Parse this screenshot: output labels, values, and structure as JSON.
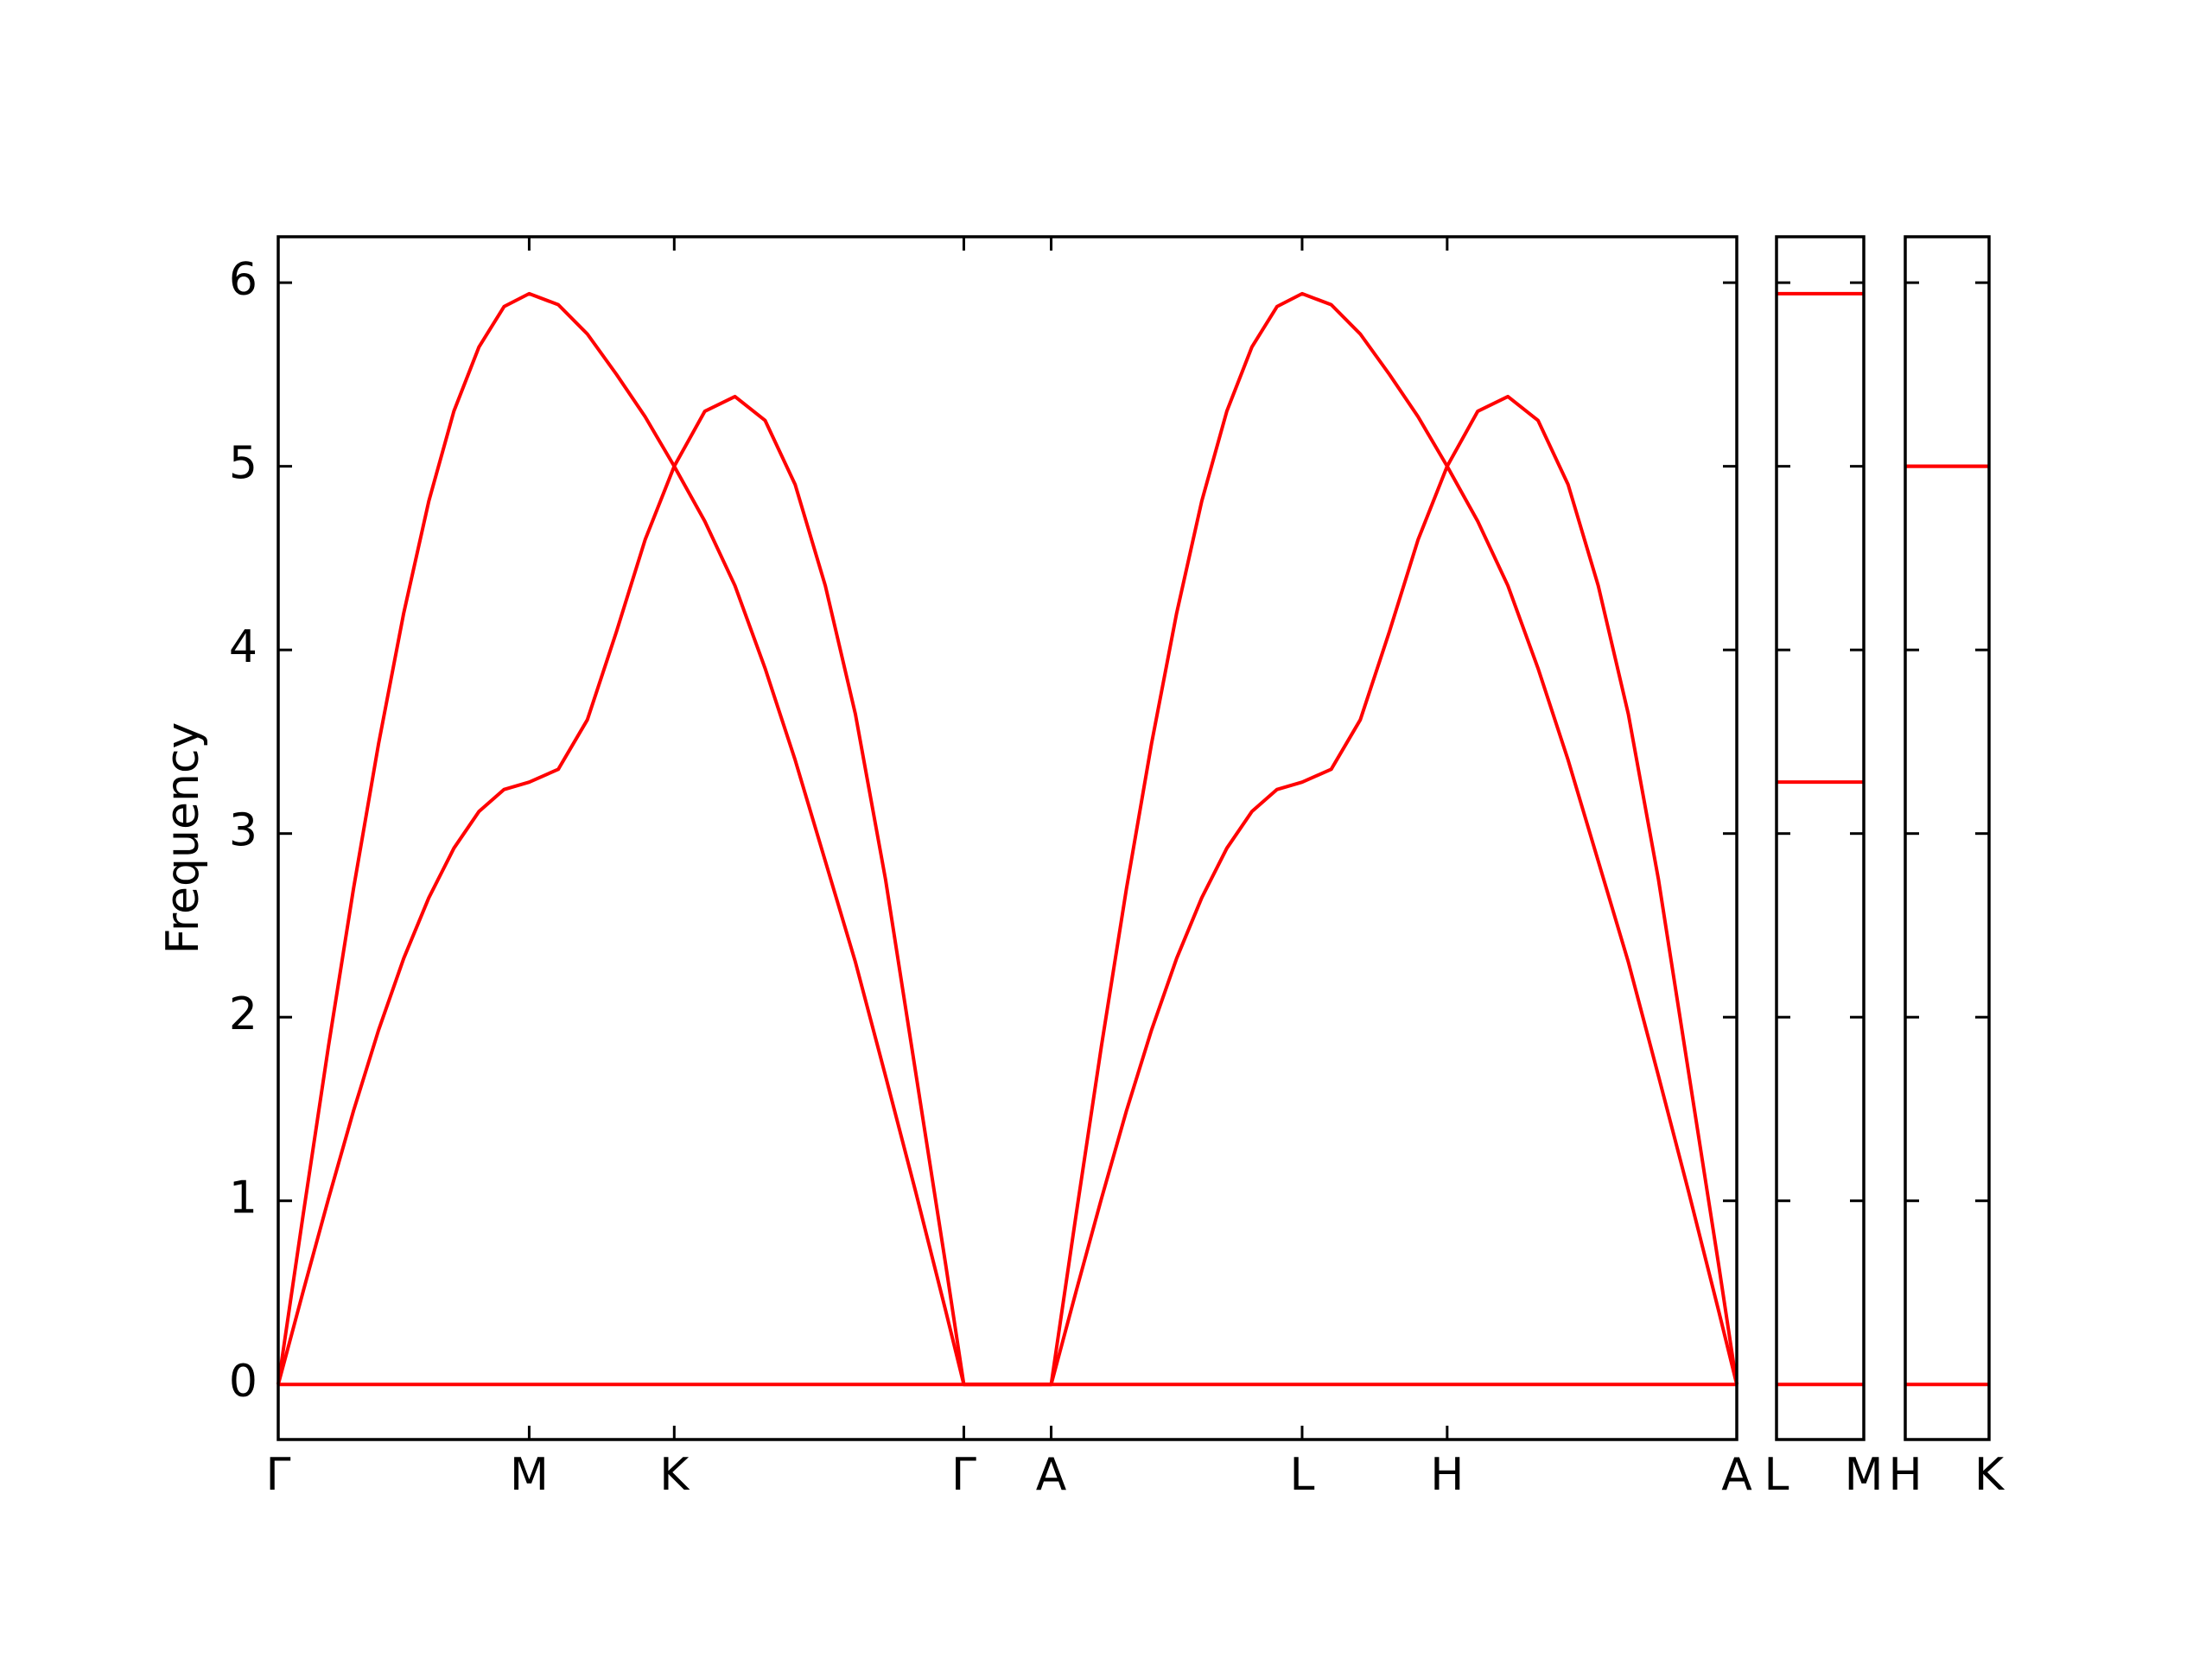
{
  "chart_data": [
    {
      "type": "line",
      "ylabel": "Frequency",
      "x": [
        0,
        0.05,
        0.1,
        0.15,
        0.2,
        0.25,
        0.3,
        0.35,
        0.4,
        0.45,
        0.5,
        0.558,
        0.616,
        0.674,
        0.731,
        0.789,
        0.85,
        0.91,
        0.97,
        1.03,
        1.09,
        1.15,
        1.21,
        1.27,
        1.33,
        1.366,
        1.54,
        1.59,
        1.64,
        1.69,
        1.74,
        1.79,
        1.84,
        1.89,
        1.94,
        1.99,
        2.04,
        2.098,
        2.156,
        2.214,
        2.271,
        2.329,
        2.39,
        2.45,
        2.51,
        2.57,
        2.63,
        2.69,
        2.75,
        2.81,
        2.87,
        2.906
      ],
      "series": [
        {
          "color": "#ff0000",
          "values": [
            0,
            0.93,
            1.84,
            2.7,
            3.49,
            4.2,
            4.81,
            5.3,
            5.65,
            5.87,
            5.94,
            5.88,
            5.72,
            5.5,
            5.27,
            5.0,
            4.7,
            4.35,
            3.9,
            3.4,
            2.85,
            2.3,
            1.68,
            1.05,
            0.4,
            0,
            0,
            0.93,
            1.84,
            2.7,
            3.49,
            4.2,
            4.81,
            5.3,
            5.65,
            5.87,
            5.94,
            5.88,
            5.72,
            5.5,
            5.27,
            5.0,
            4.7,
            4.35,
            3.9,
            3.4,
            2.85,
            2.3,
            1.68,
            1.05,
            0.4,
            0
          ]
        },
        {
          "color": "#ff0000",
          "values": [
            0,
            0.51,
            1.01,
            1.49,
            1.93,
            2.32,
            2.65,
            2.92,
            3.12,
            3.24,
            3.28,
            3.35,
            3.62,
            4.1,
            4.6,
            5.0,
            5.3,
            5.38,
            5.25,
            4.9,
            4.35,
            3.65,
            2.75,
            1.7,
            0.65,
            0,
            0,
            0.51,
            1.01,
            1.49,
            1.93,
            2.32,
            2.65,
            2.92,
            3.12,
            3.24,
            3.28,
            3.35,
            3.62,
            4.1,
            4.6,
            5.0,
            5.3,
            5.38,
            5.25,
            4.9,
            4.35,
            3.65,
            2.75,
            1.7,
            0.65,
            0
          ]
        },
        {
          "color": "#ff0000",
          "values": [
            0,
            0,
            0,
            0,
            0,
            0,
            0,
            0,
            0,
            0,
            0,
            0,
            0,
            0,
            0,
            0,
            0,
            0,
            0,
            0,
            0,
            0,
            0,
            0,
            0,
            0,
            0,
            0,
            0,
            0,
            0,
            0,
            0,
            0,
            0,
            0,
            0,
            0,
            0,
            0,
            0,
            0,
            0,
            0,
            0,
            0,
            0,
            0,
            0,
            0,
            0,
            0
          ]
        }
      ],
      "xlim": [
        0,
        2.906
      ],
      "xticks": [
        {
          "value": 0,
          "label": "Γ"
        },
        {
          "value": 0.5,
          "label": "M"
        },
        {
          "value": 0.789,
          "label": "K"
        },
        {
          "value": 1.366,
          "label": "Γ"
        },
        {
          "value": 1.54,
          "label": "A"
        },
        {
          "value": 2.04,
          "label": "L"
        },
        {
          "value": 2.329,
          "label": "H"
        },
        {
          "value": 2.906,
          "label": "A"
        }
      ],
      "ylim": [
        -0.3,
        6.25
      ],
      "yticks": [
        0,
        1,
        2,
        3,
        4,
        5,
        6
      ]
    },
    {
      "type": "line",
      "x": [
        0,
        0.174
      ],
      "series": [
        {
          "color": "#ff0000",
          "values": [
            5.94,
            5.94
          ]
        },
        {
          "color": "#ff0000",
          "values": [
            3.28,
            3.28
          ]
        },
        {
          "color": "#ff0000",
          "values": [
            0,
            0
          ]
        }
      ],
      "xlim": [
        0,
        0.174
      ],
      "xticks": [
        {
          "value": 0,
          "label": "L"
        },
        {
          "value": 0.174,
          "label": "M"
        }
      ],
      "ylim": [
        -0.3,
        6.25
      ]
    },
    {
      "type": "line",
      "x": [
        0,
        0.174
      ],
      "series": [
        {
          "color": "#ff0000",
          "values": [
            5.0,
            5.0
          ]
        },
        {
          "color": "#ff0000",
          "values": [
            5.0,
            5.0
          ]
        },
        {
          "color": "#ff0000",
          "values": [
            0,
            0
          ]
        }
      ],
      "xlim": [
        0,
        0.174
      ],
      "xticks": [
        {
          "value": 0,
          "label": "H"
        },
        {
          "value": 0.174,
          "label": "K"
        }
      ],
      "ylim": [
        -0.3,
        6.25
      ]
    }
  ]
}
